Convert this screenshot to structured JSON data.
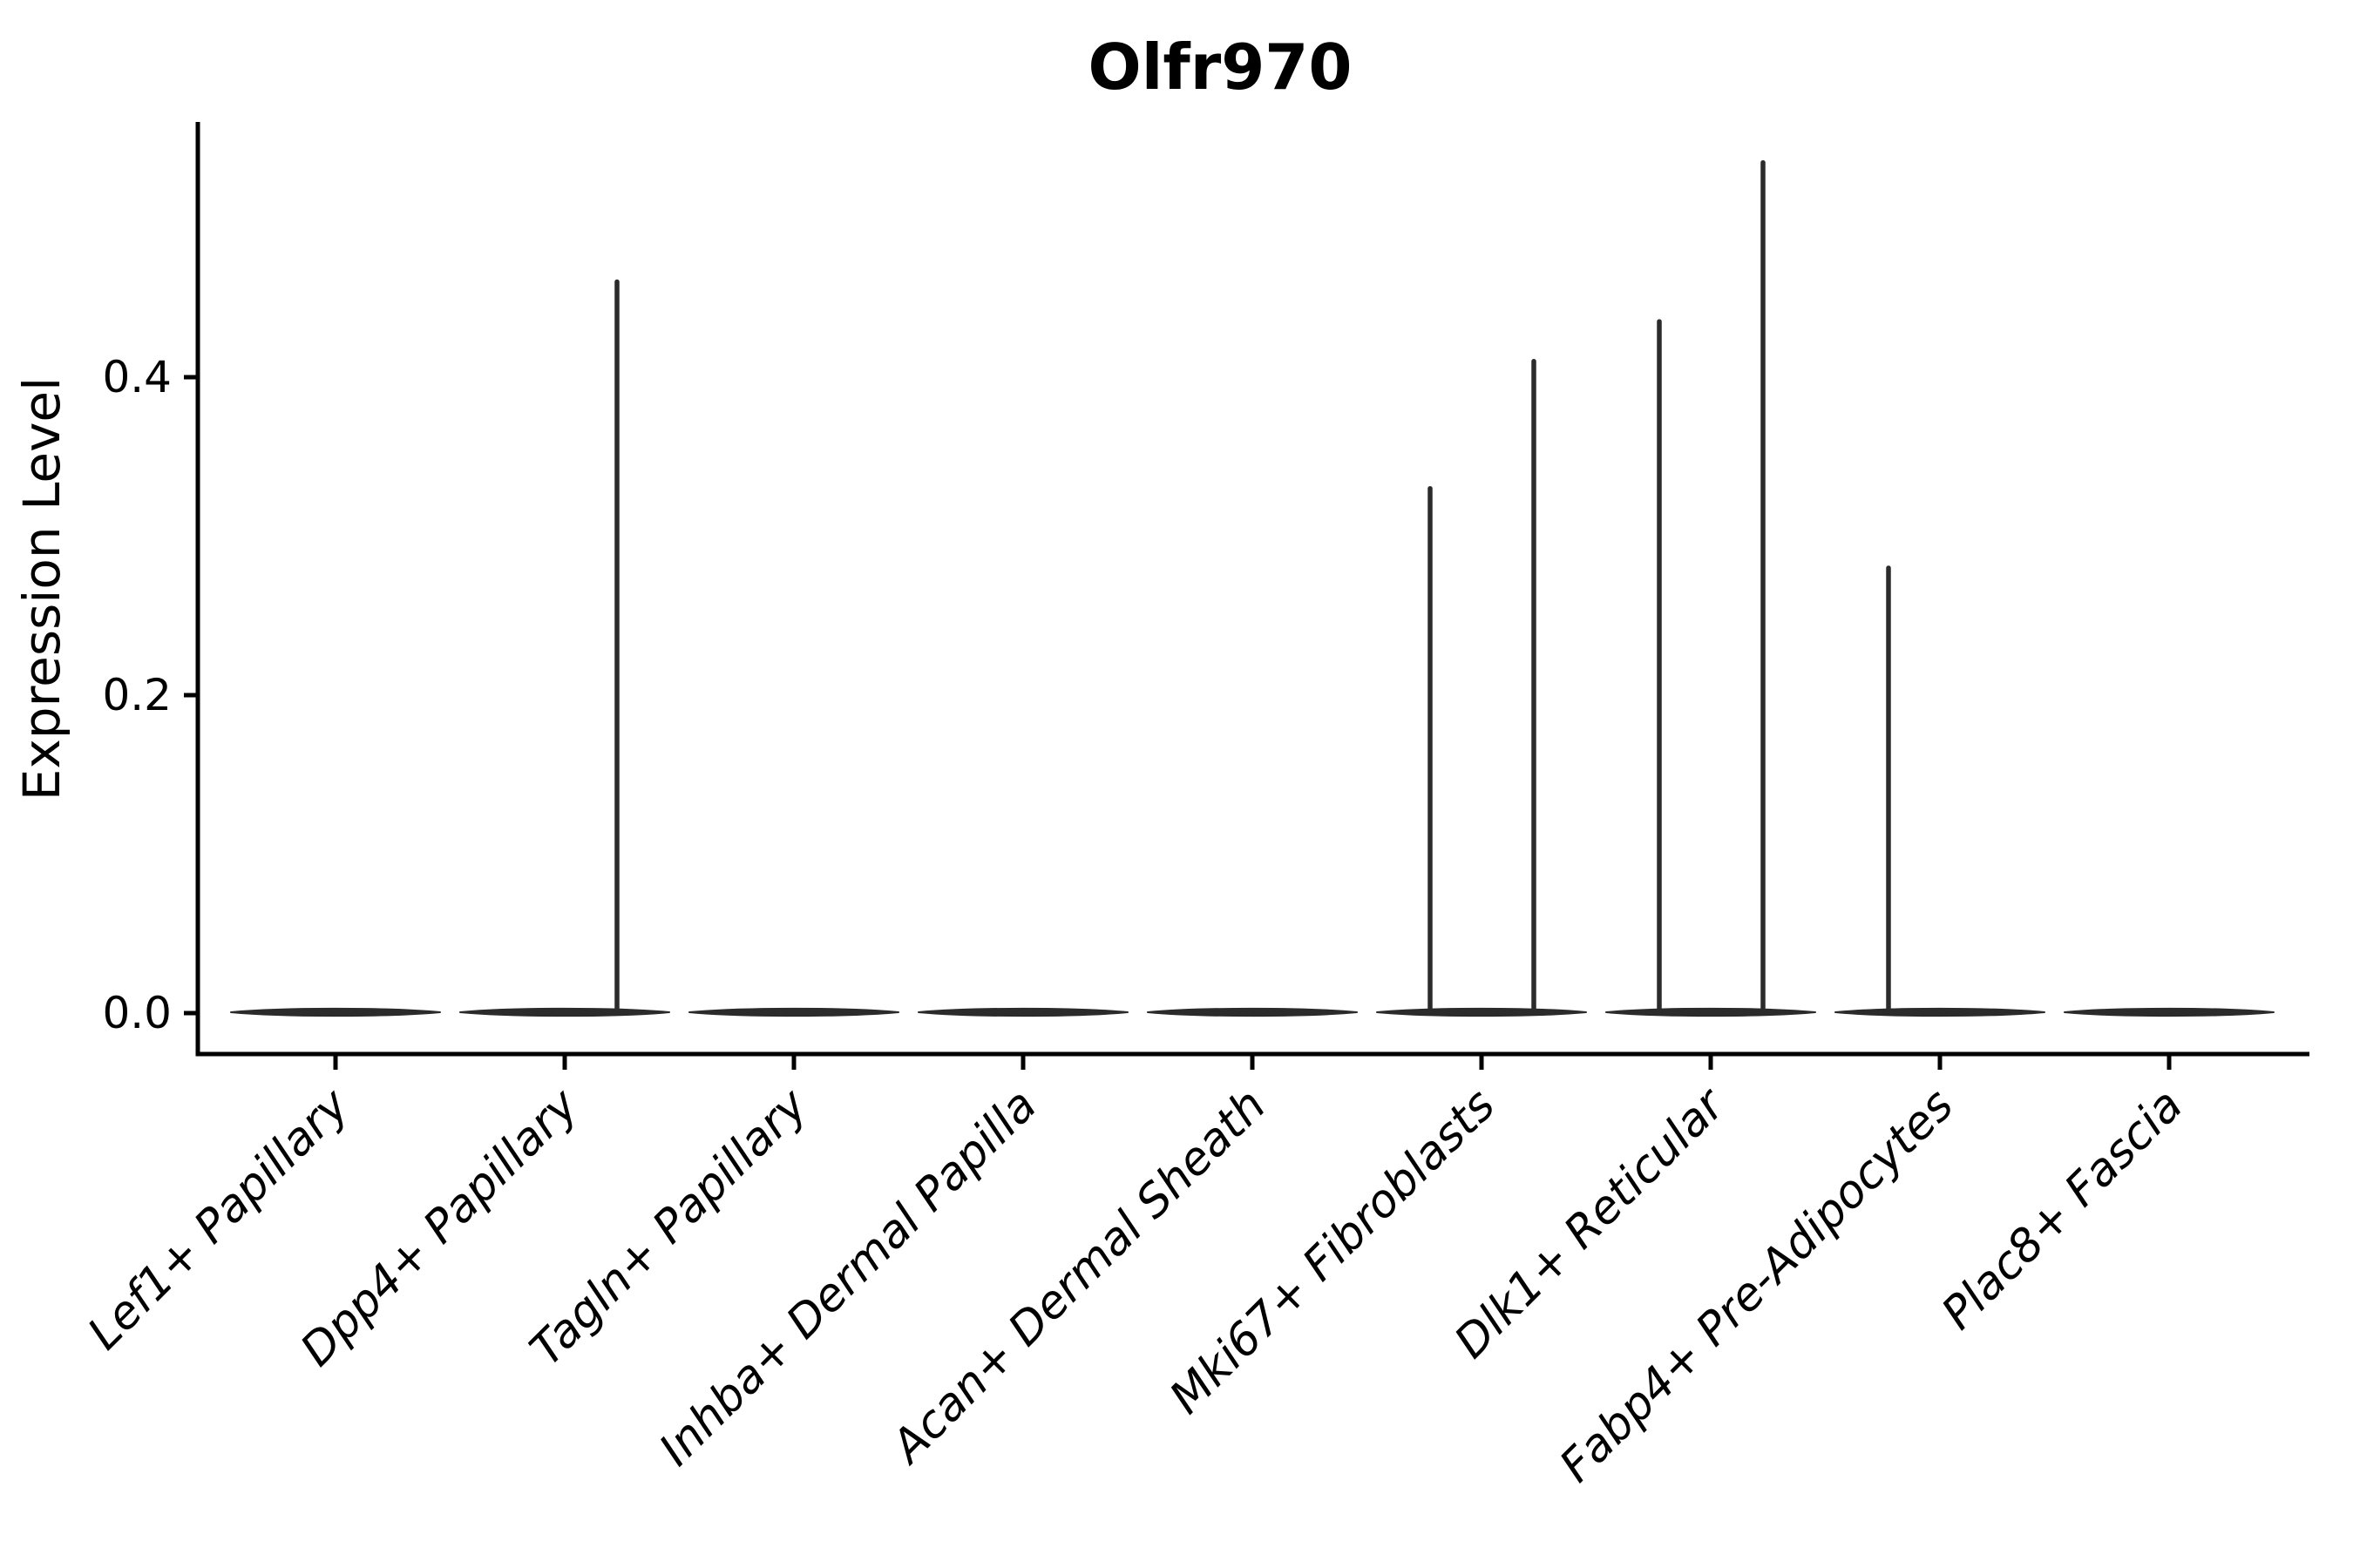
{
  "title": "Olfr970",
  "axes": {
    "ylabel": "Expression Level"
  },
  "colors": {
    "violin": "#2b2b2b",
    "axis": "#000000",
    "text": "#000000",
    "background": "#ffffff"
  },
  "chart_data": {
    "type": "violin",
    "title": "Olfr970",
    "xlabel": "",
    "ylabel": "Expression Level",
    "ylim": [
      -0.026,
      0.56
    ],
    "grid": false,
    "legend_position": "none",
    "ytick_labels": [
      "0.0",
      "0.2",
      "0.4"
    ],
    "ytick_values": [
      0.0,
      0.2,
      0.4
    ],
    "categories": [
      "Lef1+ Papillary",
      "Dpp4+ Papillary",
      "Tagln+ Papillary",
      "Inhba+ Dermal Papilla",
      "Acan+ Dermal Sheath",
      "Mki67+ Fibroblasts",
      "Dlk1+ Reticular",
      "Fabp4+ Pre-Adipocytes",
      "Plac8+ Fascia"
    ],
    "violins": [
      {
        "category": "Lef1+ Papillary",
        "baseline_value": 0.0,
        "spikes": []
      },
      {
        "category": "Dpp4+ Papillary",
        "baseline_value": 0.0,
        "spikes": [
          {
            "offset": 60,
            "value": 0.46
          }
        ]
      },
      {
        "category": "Tagln+ Papillary",
        "baseline_value": 0.0,
        "spikes": []
      },
      {
        "category": "Inhba+ Dermal Papilla",
        "baseline_value": 0.0,
        "spikes": []
      },
      {
        "category": "Acan+ Dermal Sheath",
        "baseline_value": 0.0,
        "spikes": []
      },
      {
        "category": "Mki67+ Fibroblasts",
        "baseline_value": 0.0,
        "spikes": [
          {
            "offset": -59,
            "value": 0.33
          },
          {
            "offset": 60,
            "value": 0.41
          }
        ]
      },
      {
        "category": "Dlk1+ Reticular",
        "baseline_value": 0.0,
        "spikes": [
          {
            "offset": -59,
            "value": 0.435
          },
          {
            "offset": 60,
            "value": 0.535
          }
        ]
      },
      {
        "category": "Fabp4+ Pre-Adipocytes",
        "baseline_value": 0.0,
        "spikes": [
          {
            "offset": -59,
            "value": 0.28
          }
        ]
      },
      {
        "category": "Plac8+ Fascia",
        "baseline_value": 0.0,
        "spikes": []
      }
    ]
  }
}
